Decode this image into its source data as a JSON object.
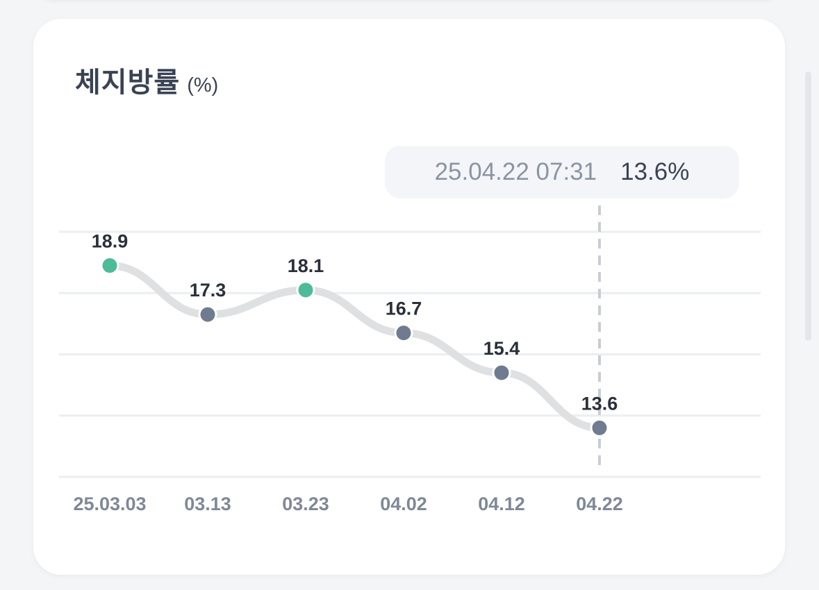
{
  "title": "체지방률",
  "unit": "(%)",
  "tooltip": {
    "time": "25.04.22 07:31",
    "value": "13.6%"
  },
  "colors": {
    "highlight": "#4dbb97",
    "point": "#6f7b8f",
    "line": "#dfe0e2",
    "grid": "#eceef0"
  },
  "chart_data": {
    "type": "line",
    "title": "체지방률 (%)",
    "categories": [
      "25.03.03",
      "03.13",
      "03.23",
      "04.02",
      "04.12",
      "04.22"
    ],
    "values": [
      18.9,
      17.3,
      18.1,
      16.7,
      15.4,
      13.6
    ],
    "labels": [
      "18.9",
      "17.3",
      "18.1",
      "16.7",
      "15.4",
      "13.6"
    ],
    "highlighted": [
      true,
      false,
      true,
      false,
      false,
      false
    ],
    "ylim": [
      12,
      20
    ],
    "grid_step": 2,
    "grid": true,
    "selected_index": 5
  }
}
